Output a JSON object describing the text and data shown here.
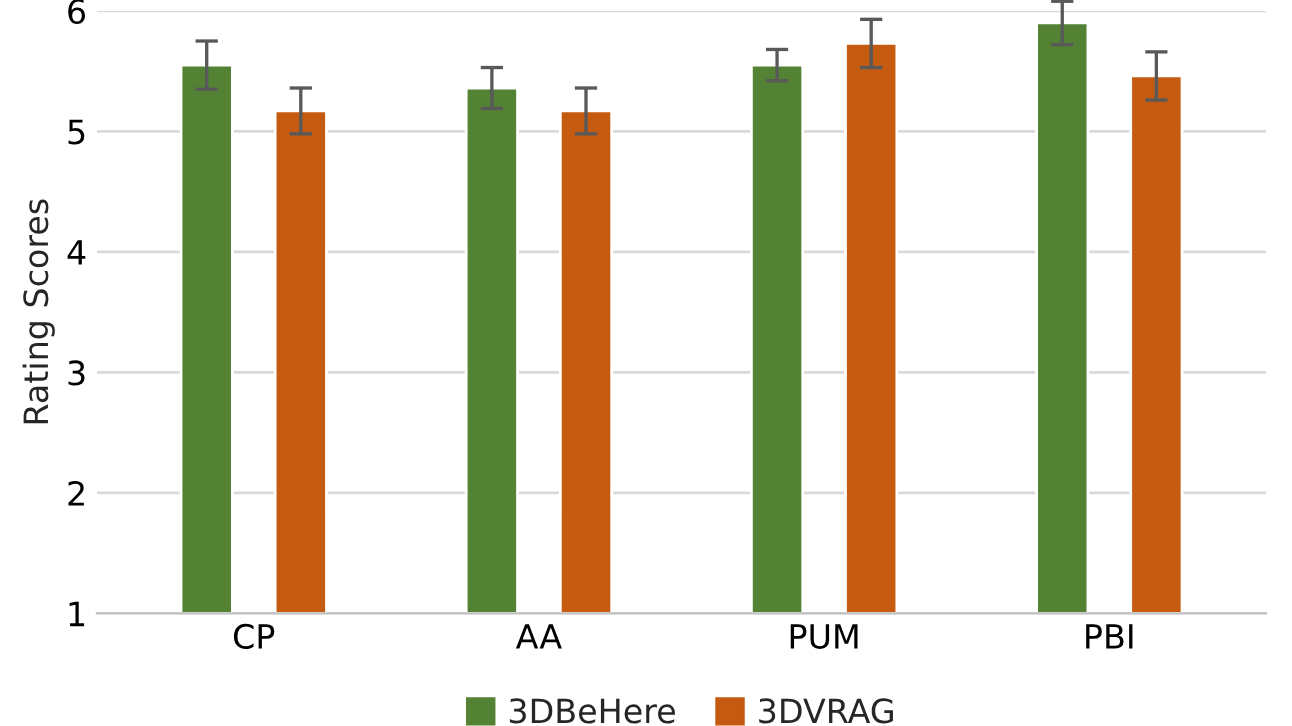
{
  "chart_data": {
    "type": "bar",
    "ylabel": "Rating Scores",
    "categories": [
      "CP",
      "AA",
      "PUM",
      "PBI"
    ],
    "series": [
      {
        "name": "3DBeHere",
        "color": "#548235",
        "values": [
          5.55,
          5.36,
          5.55,
          5.9
        ],
        "errors": [
          0.2,
          0.17,
          0.13,
          0.18
        ]
      },
      {
        "name": "3DVRAG",
        "color": "#c55a11",
        "values": [
          5.17,
          5.17,
          5.73,
          5.46
        ],
        "errors": [
          0.19,
          0.19,
          0.2,
          0.2
        ]
      }
    ],
    "ylim": [
      1,
      6
    ],
    "yticks": [
      1,
      2,
      3,
      4,
      5,
      6
    ],
    "grid": "y",
    "legend": "bottom"
  }
}
